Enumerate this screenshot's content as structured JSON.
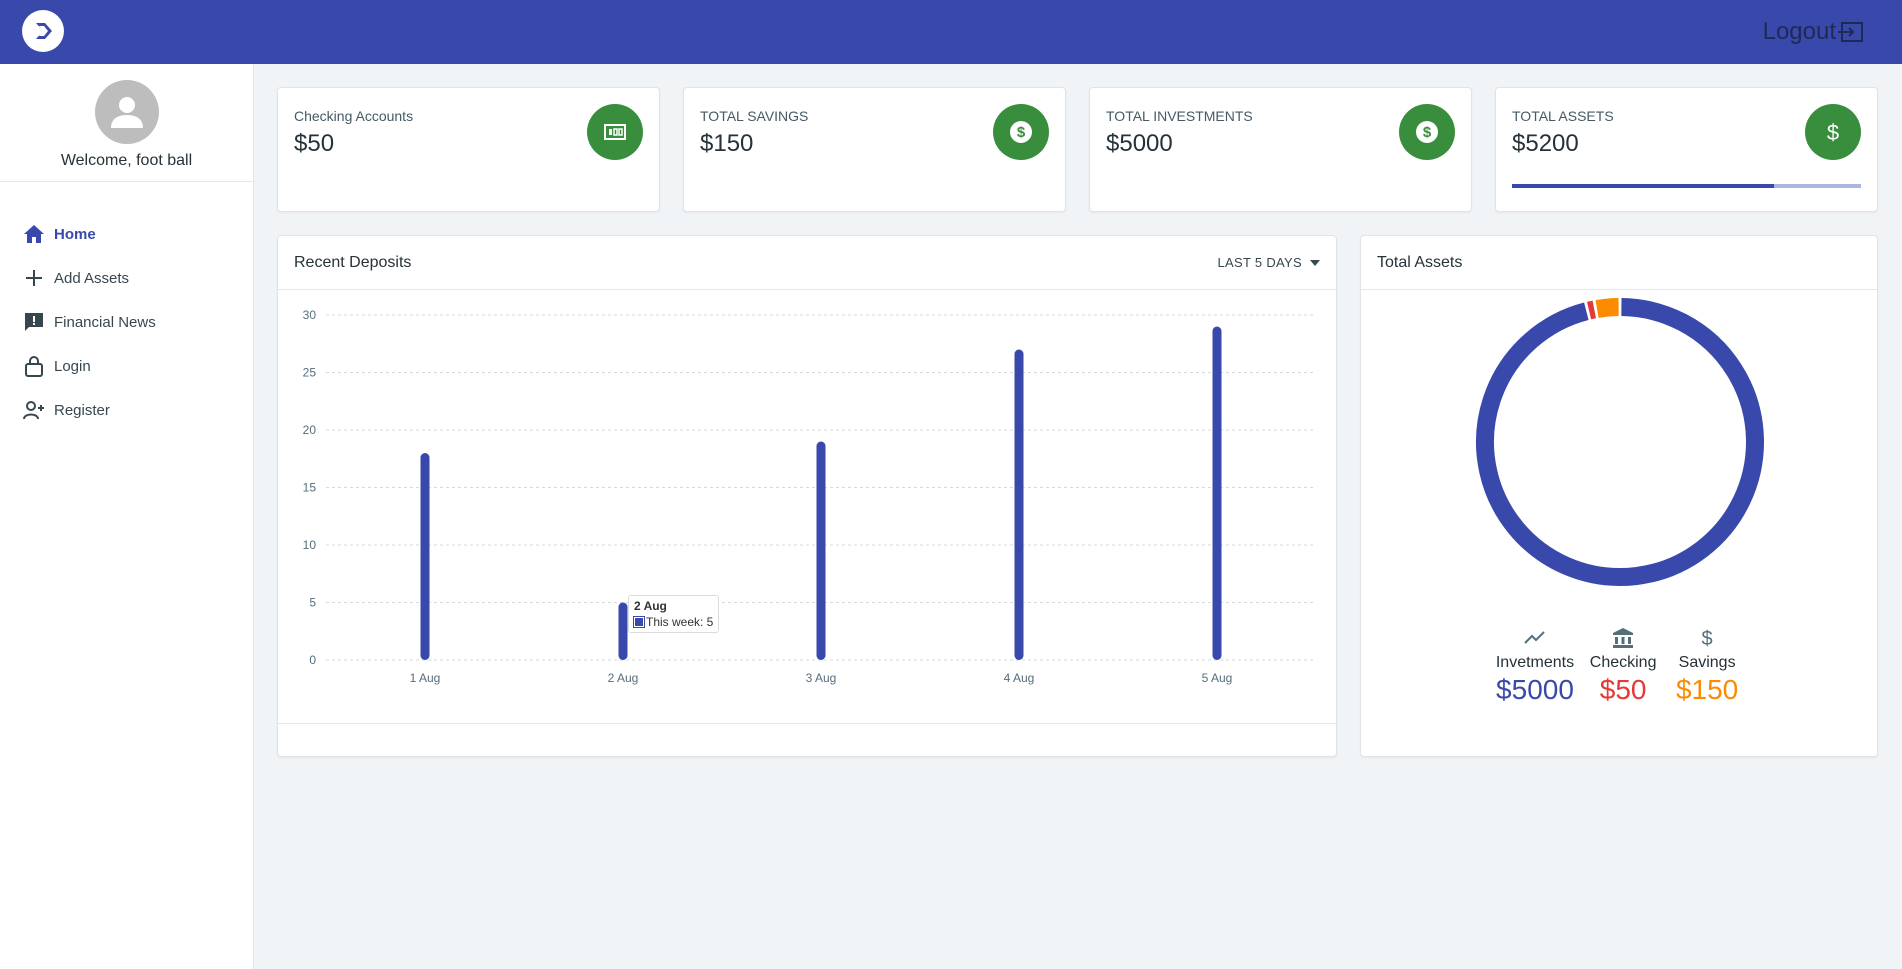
{
  "header": {
    "logout_label": "Logout"
  },
  "sidebar": {
    "welcome": "Welcome, foot ball",
    "items": [
      {
        "label": "Home",
        "icon": "home-icon",
        "active": true
      },
      {
        "label": "Add Assets",
        "icon": "plus-icon"
      },
      {
        "label": "Financial News",
        "icon": "feedback-icon"
      },
      {
        "label": "Login",
        "icon": "lock-icon"
      },
      {
        "label": "Register",
        "icon": "user-add-icon"
      }
    ]
  },
  "stats": [
    {
      "label": "Checking Accounts",
      "value": "$50",
      "icon": "money-icon"
    },
    {
      "label": "TOTAL SAVINGS",
      "value": "$150",
      "icon": "dollar-circle-icon"
    },
    {
      "label": "TOTAL INVESTMENTS",
      "value": "$5000",
      "icon": "dollar-circle-icon"
    },
    {
      "label": "TOTAL ASSETS",
      "value": "$5200",
      "icon": "dollar-icon",
      "progress": 0.75
    }
  ],
  "deposits": {
    "title": "Recent Deposits",
    "range_label": "LAST 5 DAYS",
    "tooltip": {
      "title": "2 Aug",
      "text": "This week: 5"
    }
  },
  "chart_data": [
    {
      "type": "bar",
      "title": "Recent Deposits",
      "categories": [
        "1 Aug",
        "2 Aug",
        "3 Aug",
        "4 Aug",
        "5 Aug"
      ],
      "series": [
        {
          "name": "This week",
          "values": [
            18,
            5,
            19,
            27,
            29
          ]
        }
      ],
      "ylim": [
        0,
        30
      ],
      "yticks": [
        0,
        5,
        10,
        15,
        20,
        25,
        30
      ],
      "grid": true,
      "colors": {
        "bar": "#3949ab",
        "grid": "#d6d9de",
        "tick": "#546e7a"
      }
    },
    {
      "type": "pie",
      "title": "Total Assets",
      "labels": [
        "Invetments",
        "Checking",
        "Savings"
      ],
      "values": [
        5000,
        50,
        150
      ],
      "colors": [
        "#3949ab",
        "#e53935",
        "#fb8c00"
      ]
    }
  ],
  "assets": {
    "title": "Total Assets",
    "legend": [
      {
        "name": "Invetments",
        "value": "$5000",
        "icon": "trending-up-icon",
        "color": "#3949ab"
      },
      {
        "name": "Checking",
        "value": "$50",
        "icon": "bank-icon",
        "color": "#e53935"
      },
      {
        "name": "Savings",
        "value": "$150",
        "icon": "dollar-icon",
        "color": "#fb8c00"
      }
    ]
  }
}
